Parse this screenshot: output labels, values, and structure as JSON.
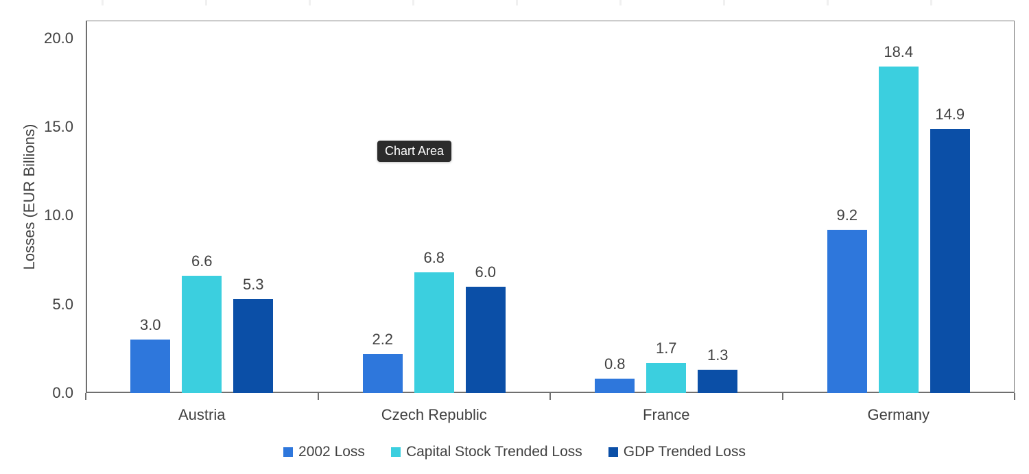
{
  "tooltip": {
    "label": "Chart Area"
  },
  "colors": {
    "series1_blue": "#2E77DC",
    "series2_cyan": "#3BCFDF",
    "series3_dark_blue": "#0B4FA7",
    "axis_line": "#6f6f6f",
    "text": "#404040",
    "tooltip_bg": "#2b2b2b",
    "tooltip_text": "#ffffff"
  },
  "chart_data": {
    "type": "bar",
    "title": "",
    "xlabel": "",
    "ylabel": "Losses (EUR Billions)",
    "categories": [
      "Austria",
      "Czech Republic",
      "France",
      "Germany"
    ],
    "series": [
      {
        "name": "2002 Loss",
        "color": "#2E77DC",
        "values": [
          3.0,
          2.2,
          0.8,
          9.2
        ],
        "labels": [
          "3.0",
          "2.2",
          "0.8",
          "9.2"
        ]
      },
      {
        "name": "Capital Stock Trended Loss",
        "color": "#3BCFDF",
        "values": [
          6.6,
          6.8,
          1.7,
          18.4
        ],
        "labels": [
          "6.6",
          "6.8",
          "1.7",
          "18.4"
        ]
      },
      {
        "name": "GDP Trended Loss",
        "color": "#0B4FA7",
        "values": [
          5.3,
          6.0,
          1.3,
          14.9
        ],
        "labels": [
          "5.3",
          "6.0",
          "1.3",
          "14.9"
        ]
      }
    ],
    "ylim": [
      0,
      21
    ],
    "yticks": [
      0.0,
      5.0,
      10.0,
      15.0,
      20.0
    ],
    "ytick_labels": [
      "0.0",
      "5.0",
      "10.0",
      "15.0",
      "20.0"
    ],
    "grid": false,
    "legend_position": "bottom"
  }
}
